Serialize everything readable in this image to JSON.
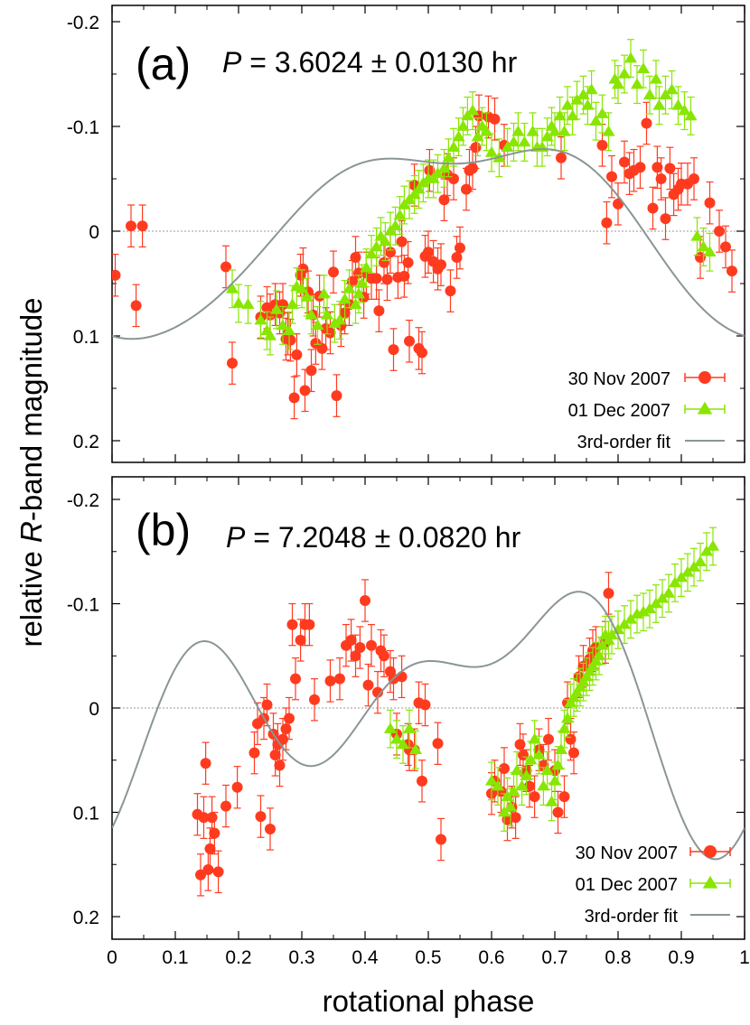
{
  "figure": {
    "ylabel_prefix": "relative ",
    "ylabel_italic": "R",
    "ylabel_suffix": "-band magnitude",
    "xlabel": "rotational phase"
  },
  "colors": {
    "nov30": "#ff3b1f",
    "dec01": "#88e600",
    "fit": "#8a9597",
    "zero_line": "#999999"
  },
  "chart_data": [
    {
      "type": "scatter",
      "panel": "(a)",
      "period_symbol": "P",
      "period_text": " = 3.6024 ± 0.0130 hr",
      "xlim": [
        0,
        1
      ],
      "ylim": [
        0.22,
        -0.22
      ],
      "y_inverted": true,
      "x_ticks": [
        "0",
        "0.1",
        "0.2",
        "0.3",
        "0.4",
        "0.5",
        "0.6",
        "0.7",
        "0.8",
        "0.9",
        "1"
      ],
      "y_ticks": [
        {
          "value": -0.2,
          "label": "-0.2"
        },
        {
          "value": -0.1,
          "label": "-0.1"
        },
        {
          "value": 0,
          "label": "0"
        },
        {
          "value": 0.1,
          "label": "0.1"
        },
        {
          "value": 0.2,
          "label": "0.2"
        }
      ],
      "zero_line": true,
      "legend": [
        {
          "label": "30 Nov 2007",
          "series": "nov30"
        },
        {
          "label": "01 Dec 2007",
          "series": "dec01"
        },
        {
          "label": "3rd-order fit",
          "series": "fit"
        }
      ],
      "fit": {
        "mean": -0.005,
        "coeffs": [
          [
            0.085,
            0.03
          ],
          [
            0.022,
            0.01
          ],
          [
            -0.002,
            -0.007
          ]
        ]
      },
      "series": [
        {
          "name": "30 Nov 2007",
          "marker": "circle",
          "err": 0.02,
          "x": [
            0.005,
            0.03,
            0.038,
            0.048,
            0.18,
            0.19,
            0.235,
            0.245,
            0.25,
            0.258,
            0.265,
            0.27,
            0.275,
            0.278,
            0.282,
            0.288,
            0.292,
            0.298,
            0.302,
            0.305,
            0.31,
            0.315,
            0.318,
            0.322,
            0.328,
            0.332,
            0.338,
            0.345,
            0.35,
            0.355,
            0.362,
            0.368,
            0.375,
            0.38,
            0.385,
            0.39,
            0.398,
            0.402,
            0.41,
            0.418,
            0.422,
            0.43,
            0.435,
            0.44,
            0.445,
            0.452,
            0.458,
            0.462,
            0.468,
            0.47,
            0.478,
            0.485,
            0.49,
            0.495,
            0.5,
            0.502,
            0.508,
            0.515,
            0.52,
            0.525,
            0.53,
            0.535,
            0.54,
            0.545,
            0.55,
            0.56,
            0.565,
            0.57,
            0.575,
            0.58,
            0.595,
            0.605,
            0.62,
            0.71,
            0.775,
            0.782,
            0.79,
            0.8,
            0.81,
            0.818,
            0.825,
            0.835,
            0.845,
            0.855,
            0.862,
            0.868,
            0.875,
            0.882,
            0.888,
            0.895,
            0.9,
            0.91,
            0.92,
            0.93,
            0.945,
            0.96,
            0.97,
            0.98
          ],
          "y": [
            0.042,
            -0.005,
            0.071,
            -0.005,
            0.034,
            0.126,
            0.082,
            0.073,
            0.08,
            0.07,
            0.078,
            0.07,
            0.103,
            0.098,
            0.104,
            0.159,
            0.118,
            0.042,
            0.036,
            0.152,
            0.058,
            0.133,
            0.08,
            0.107,
            0.062,
            0.112,
            0.093,
            0.097,
            0.039,
            0.157,
            0.09,
            0.078,
            0.07,
            0.048,
            0.025,
            0.04,
            0.063,
            0.04,
            0.045,
            0.045,
            0.076,
            0.03,
            0.046,
            0.02,
            0.113,
            0.044,
            0.01,
            0.043,
            0.03,
            0.105,
            -0.044,
            0.112,
            0.116,
            0.024,
            0.02,
            -0.058,
            0.029,
            0.036,
            0.032,
            -0.03,
            -0.054,
            0.057,
            -0.05,
            0.025,
            0.016,
            -0.04,
            -0.058,
            -0.06,
            -0.08,
            -0.11,
            -0.109,
            -0.107,
            -0.082,
            -0.07,
            -0.082,
            -0.008,
            -0.052,
            -0.026,
            -0.066,
            -0.055,
            -0.058,
            -0.061,
            -0.103,
            -0.022,
            -0.061,
            -0.05,
            -0.012,
            -0.06,
            -0.035,
            -0.04,
            -0.045,
            -0.045,
            -0.05,
            0.025,
            -0.027,
            0,
            0.015,
            0.038
          ]
        },
        {
          "name": "01 Dec 2007",
          "marker": "triangle",
          "err": 0.018,
          "x": [
            0.19,
            0.2,
            0.215,
            0.235,
            0.245,
            0.25,
            0.26,
            0.27,
            0.28,
            0.285,
            0.292,
            0.3,
            0.308,
            0.315,
            0.325,
            0.335,
            0.34,
            0.352,
            0.36,
            0.368,
            0.375,
            0.385,
            0.39,
            0.395,
            0.402,
            0.41,
            0.418,
            0.425,
            0.432,
            0.44,
            0.448,
            0.455,
            0.462,
            0.47,
            0.478,
            0.485,
            0.492,
            0.5,
            0.508,
            0.515,
            0.525,
            0.532,
            0.54,
            0.548,
            0.555,
            0.562,
            0.57,
            0.578,
            0.585,
            0.592,
            0.6,
            0.612,
            0.625,
            0.635,
            0.642,
            0.652,
            0.665,
            0.672,
            0.68,
            0.688,
            0.695,
            0.7,
            0.708,
            0.715,
            0.72,
            0.728,
            0.735,
            0.745,
            0.752,
            0.758,
            0.765,
            0.775,
            0.785,
            0.795,
            0.8,
            0.81,
            0.82,
            0.83,
            0.84,
            0.85,
            0.86,
            0.865,
            0.875,
            0.885,
            0.895,
            0.905,
            0.915,
            0.925,
            0.935,
            0.945
          ],
          "y": [
            0.055,
            0.069,
            0.07,
            0.085,
            0.095,
            0.1,
            0.075,
            0.09,
            0.095,
            0.07,
            0.053,
            0.055,
            0.063,
            0.08,
            0.09,
            0.06,
            0.08,
            0.088,
            0.085,
            0.065,
            0.055,
            0.07,
            0.06,
            0.05,
            0.035,
            0.022,
            0.015,
            0.005,
            0.01,
            0,
            -0.005,
            -0.015,
            -0.025,
            -0.03,
            -0.035,
            -0.04,
            -0.046,
            -0.05,
            -0.05,
            -0.055,
            -0.06,
            -0.07,
            -0.08,
            -0.09,
            -0.1,
            -0.11,
            -0.115,
            -0.09,
            -0.1,
            -0.095,
            -0.075,
            -0.07,
            -0.08,
            -0.085,
            -0.095,
            -0.085,
            -0.095,
            -0.08,
            -0.08,
            -0.09,
            -0.1,
            -0.095,
            -0.11,
            -0.095,
            -0.12,
            -0.11,
            -0.125,
            -0.13,
            -0.12,
            -0.135,
            -0.105,
            -0.112,
            -0.095,
            -0.145,
            -0.14,
            -0.15,
            -0.165,
            -0.14,
            -0.155,
            -0.13,
            -0.145,
            -0.12,
            -0.13,
            -0.135,
            -0.12,
            -0.115,
            -0.11,
            0.005,
            0.015,
            0.02
          ]
        }
      ]
    },
    {
      "type": "scatter",
      "panel": "(b)",
      "period_symbol": "P",
      "period_text": " = 7.2048 ± 0.0820 hr",
      "xlim": [
        0,
        1
      ],
      "ylim": [
        0.22,
        -0.22
      ],
      "y_inverted": true,
      "x_ticks": [
        "0",
        "0.1",
        "0.2",
        "0.3",
        "0.4",
        "0.5",
        "0.6",
        "0.7",
        "0.8",
        "0.9",
        "1"
      ],
      "y_ticks": [
        {
          "value": -0.2,
          "label": "-0.2"
        },
        {
          "value": -0.1,
          "label": "-0.1"
        },
        {
          "value": 0,
          "label": "0"
        },
        {
          "value": 0.1,
          "label": "0.1"
        },
        {
          "value": 0.2,
          "label": "0.2"
        }
      ],
      "zero_line": true,
      "legend": [
        {
          "label": "30 Nov 2007",
          "series": "nov30"
        },
        {
          "label": "01 Dec 2007",
          "series": "dec01"
        },
        {
          "label": "3rd-order fit",
          "series": "fit"
        }
      ],
      "fit": {
        "mean": -0.005,
        "coeffs": [
          [
            0.045,
            0.025
          ],
          [
            0.04,
            -0.05
          ],
          [
            0.035,
            -0.04
          ]
        ]
      },
      "series": [
        {
          "name": "30 Nov 2007",
          "marker": "circle",
          "err": 0.02,
          "x": [
            0.135,
            0.14,
            0.145,
            0.148,
            0.152,
            0.155,
            0.158,
            0.162,
            0.168,
            0.18,
            0.198,
            0.225,
            0.23,
            0.235,
            0.24,
            0.245,
            0.25,
            0.255,
            0.258,
            0.262,
            0.265,
            0.27,
            0.275,
            0.28,
            0.285,
            0.29,
            0.298,
            0.305,
            0.312,
            0.32,
            0.345,
            0.36,
            0.37,
            0.378,
            0.385,
            0.392,
            0.4,
            0.405,
            0.41,
            0.42,
            0.425,
            0.43,
            0.44,
            0.445,
            0.45,
            0.458,
            0.468,
            0.47,
            0.478,
            0.485,
            0.49,
            0.495,
            0.515,
            0.52,
            0.6,
            0.605,
            0.615,
            0.62,
            0.625,
            0.632,
            0.638,
            0.645,
            0.65,
            0.655,
            0.66,
            0.668,
            0.675,
            0.682,
            0.69,
            0.7,
            0.705,
            0.715,
            0.72,
            0.725,
            0.73,
            0.738,
            0.745,
            0.755,
            0.76,
            0.765,
            0.78,
            0.785
          ],
          "y": [
            0.102,
            0.16,
            0.105,
            0.053,
            0.155,
            0.135,
            0.105,
            0.12,
            0.157,
            0.094,
            0.076,
            0.043,
            0.015,
            0.104,
            0.01,
            -0.003,
            0.116,
            0.025,
            0.045,
            0.035,
            0.055,
            0.03,
            0.02,
            0.01,
            -0.08,
            -0.028,
            -0.065,
            -0.08,
            -0.08,
            -0.008,
            -0.026,
            -0.028,
            -0.06,
            -0.065,
            -0.05,
            -0.058,
            -0.103,
            -0.022,
            -0.06,
            -0.015,
            -0.055,
            -0.05,
            -0.035,
            -0.028,
            0.025,
            -0.03,
            0.035,
            0.04,
            0.04,
            -0.005,
            0.07,
            -0.003,
            0.034,
            0.126,
            0.082,
            0.07,
            0.08,
            0.058,
            0.107,
            0.095,
            0.105,
            0.035,
            0.045,
            0.06,
            0.075,
            0.085,
            0.04,
            0.055,
            0.03,
            0.06,
            0.1,
            0.085,
            -0.005,
            0.03,
            0.043,
            -0.03,
            -0.04,
            -0.047,
            -0.055,
            -0.058,
            -0.063,
            -0.11
          ]
        },
        {
          "name": "01 Dec 2007",
          "marker": "triangle",
          "err": 0.018,
          "x": [
            0.44,
            0.45,
            0.46,
            0.47,
            0.48,
            0.6,
            0.61,
            0.62,
            0.625,
            0.63,
            0.635,
            0.64,
            0.648,
            0.655,
            0.662,
            0.668,
            0.675,
            0.682,
            0.688,
            0.695,
            0.7,
            0.705,
            0.71,
            0.715,
            0.72,
            0.725,
            0.73,
            0.735,
            0.74,
            0.745,
            0.75,
            0.755,
            0.76,
            0.765,
            0.77,
            0.775,
            0.78,
            0.785,
            0.79,
            0.8,
            0.81,
            0.82,
            0.83,
            0.84,
            0.85,
            0.86,
            0.87,
            0.88,
            0.89,
            0.9,
            0.91,
            0.92,
            0.93,
            0.94,
            0.95
          ],
          "y": [
            0.02,
            0.03,
            0.035,
            0.02,
            0.04,
            0.07,
            0.075,
            0.1,
            0.085,
            0.095,
            0.08,
            0.06,
            0.075,
            0.065,
            0.05,
            0.03,
            0.045,
            0.075,
            0.06,
            0.09,
            0.07,
            0.055,
            0.04,
            0.02,
            0.01,
            -0.005,
            -0.01,
            -0.015,
            -0.02,
            -0.025,
            -0.03,
            -0.035,
            -0.04,
            -0.045,
            -0.05,
            -0.06,
            -0.07,
            -0.065,
            -0.07,
            -0.075,
            -0.08,
            -0.085,
            -0.09,
            -0.092,
            -0.095,
            -0.1,
            -0.105,
            -0.11,
            -0.12,
            -0.125,
            -0.13,
            -0.135,
            -0.14,
            -0.15,
            -0.155
          ]
        }
      ]
    }
  ]
}
